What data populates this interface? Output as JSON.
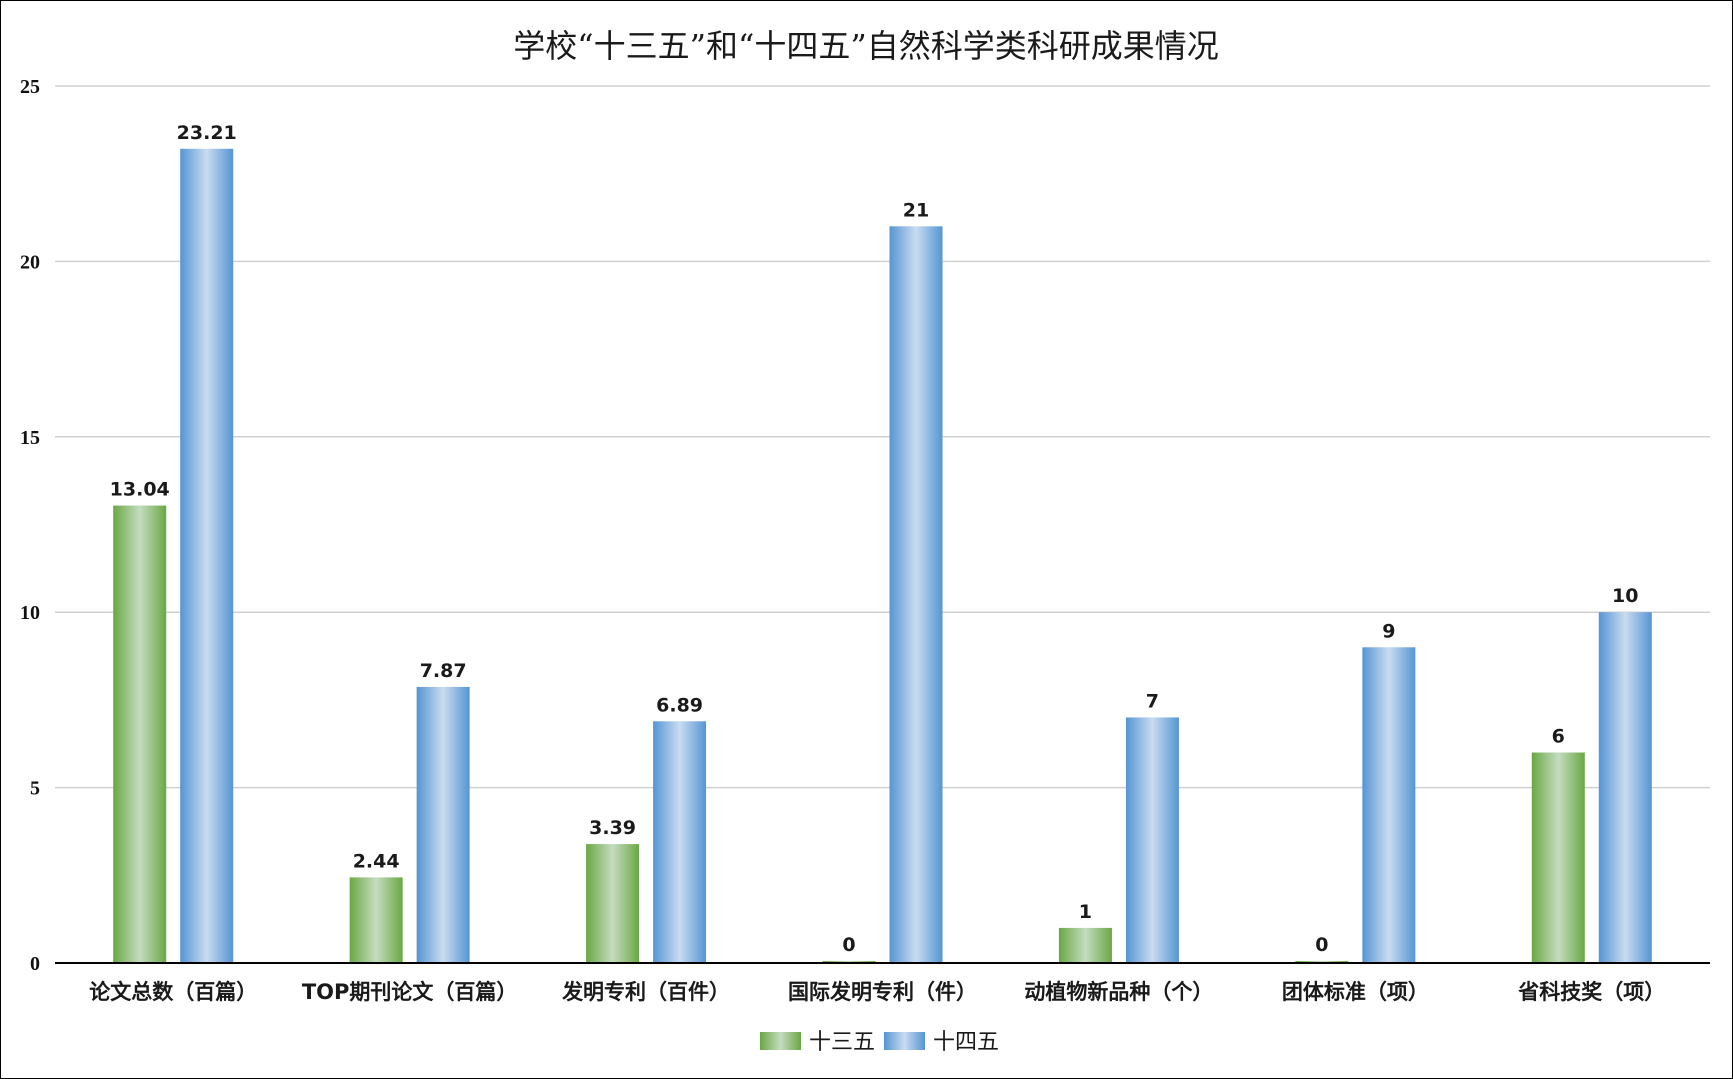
{
  "chart_data": {
    "type": "bar",
    "title": "学校“十三五”和“十四五”自然科学类科研成果情况",
    "categories": [
      "论文总数（百篇）",
      "TOP期刊论文（百篇）",
      "发明专利（百件）",
      "国际发明专利（件）",
      "动植物新品种（个）",
      "团体标准（项）",
      "省科技奖（项）"
    ],
    "series": [
      {
        "name": "十三五",
        "values": [
          13.04,
          2.44,
          3.39,
          0,
          1,
          0,
          6
        ],
        "labels": [
          "13.04",
          "2.44",
          "3.39",
          "0",
          "1",
          "0",
          "6"
        ],
        "color": "#70ad47"
      },
      {
        "name": "十四五",
        "values": [
          23.21,
          7.87,
          6.89,
          21,
          7,
          9,
          10
        ],
        "labels": [
          "23.21",
          "7.87",
          "6.89",
          "21",
          "7",
          "9",
          "10"
        ],
        "color": "#5b9bd5"
      }
    ],
    "ylim": [
      0,
      25
    ],
    "yticks": [
      "0",
      "5",
      "10",
      "15",
      "20",
      "25"
    ],
    "ytick_values": [
      0,
      5,
      10,
      15,
      20,
      25
    ],
    "grid": true,
    "legend_position": "bottom"
  }
}
